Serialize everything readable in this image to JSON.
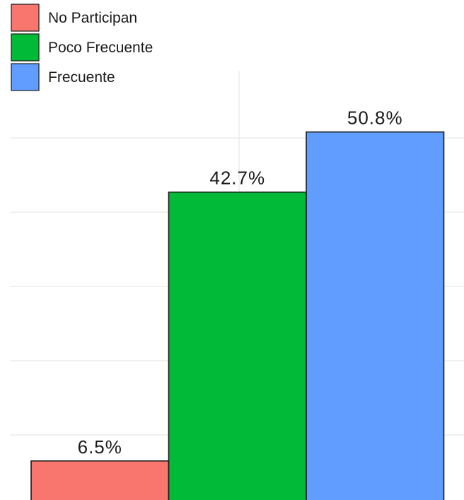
{
  "chart_data": {
    "type": "bar",
    "categories": [
      "No Participan",
      "Poco Frecuente",
      "Frecuente"
    ],
    "values": [
      6.5,
      42.7,
      50.8
    ],
    "value_labels": [
      "6.5%",
      "42.7%",
      "50.8%"
    ],
    "colors": [
      "#f8766d",
      "#00ba38",
      "#619cff"
    ],
    "legend": {
      "placement": "top-left",
      "entries": [
        "No Participan",
        "Poco Frecuente",
        "Frecuente"
      ]
    },
    "ylim": [
      0,
      53
    ],
    "grid": true
  }
}
